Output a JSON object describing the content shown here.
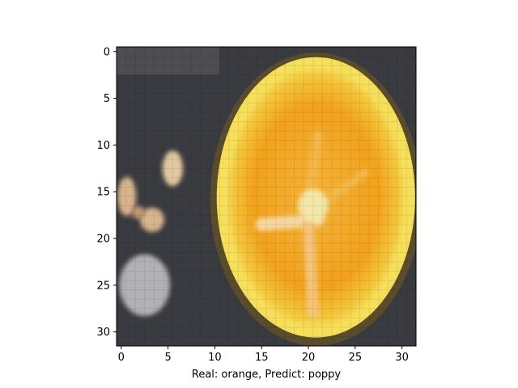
{
  "figure": {
    "xlabel": "Real: orange, Predict: poppy",
    "image_grid": [
      32,
      32
    ],
    "x_ticks": [
      {
        "value": 0,
        "label": "0"
      },
      {
        "value": 5,
        "label": "5"
      },
      {
        "value": 10,
        "label": "10"
      },
      {
        "value": 15,
        "label": "15"
      },
      {
        "value": 20,
        "label": "20"
      },
      {
        "value": 25,
        "label": "25"
      },
      {
        "value": 30,
        "label": "30"
      }
    ],
    "y_ticks": [
      {
        "value": 0,
        "label": "0"
      },
      {
        "value": 5,
        "label": "5"
      },
      {
        "value": 10,
        "label": "10"
      },
      {
        "value": 15,
        "label": "15"
      },
      {
        "value": 20,
        "label": "20"
      },
      {
        "value": 25,
        "label": "25"
      },
      {
        "value": 30,
        "label": "30"
      }
    ],
    "colors": {
      "background": "#3a3b40",
      "orange_fill": "#f2a21c",
      "orange_rim": "#f6df5a",
      "orange_dark_edge": "#5a4d2c",
      "segment_highlight": "#f7d7a0",
      "center_highlight": "#f3e7a8",
      "gray_object": "#b2b2b6",
      "seed_light": "#e2c8a0"
    }
  }
}
